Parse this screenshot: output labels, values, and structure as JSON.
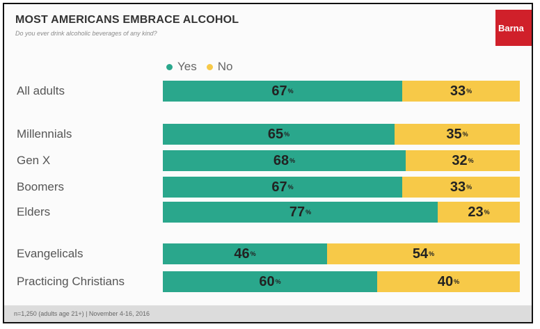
{
  "header": {
    "title": "MOST AMERICANS EMBRACE ALCOHOL",
    "subtitle": "Do you ever drink alcoholic beverages of any kind?",
    "logo_text": "Barna"
  },
  "footer": {
    "note": "n=1,250 (adults age 21+) | November 4-16, 2016"
  },
  "colors": {
    "yes": "#2aa78c",
    "no": "#f7c948",
    "logo": "#d0202a"
  },
  "chart_data": {
    "type": "bar",
    "orientation": "horizontal",
    "stacked": true,
    "percent_suffix": "%",
    "title": "MOST AMERICANS EMBRACE ALCOHOL",
    "subtitle": "Do you ever drink alcoholic beverages of any kind?",
    "xlim": [
      0,
      100
    ],
    "legend_position": "top",
    "grid": false,
    "categories": [
      "All adults",
      "Millennials",
      "Gen X",
      "Boomers",
      "Elders",
      "Evangelicals",
      "Practicing Christians"
    ],
    "series": [
      {
        "name": "Yes",
        "color": "#2aa78c",
        "values": [
          67,
          65,
          68,
          67,
          77,
          46,
          60
        ]
      },
      {
        "name": "No",
        "color": "#f7c948",
        "values": [
          33,
          35,
          32,
          33,
          23,
          54,
          40
        ]
      }
    ]
  }
}
